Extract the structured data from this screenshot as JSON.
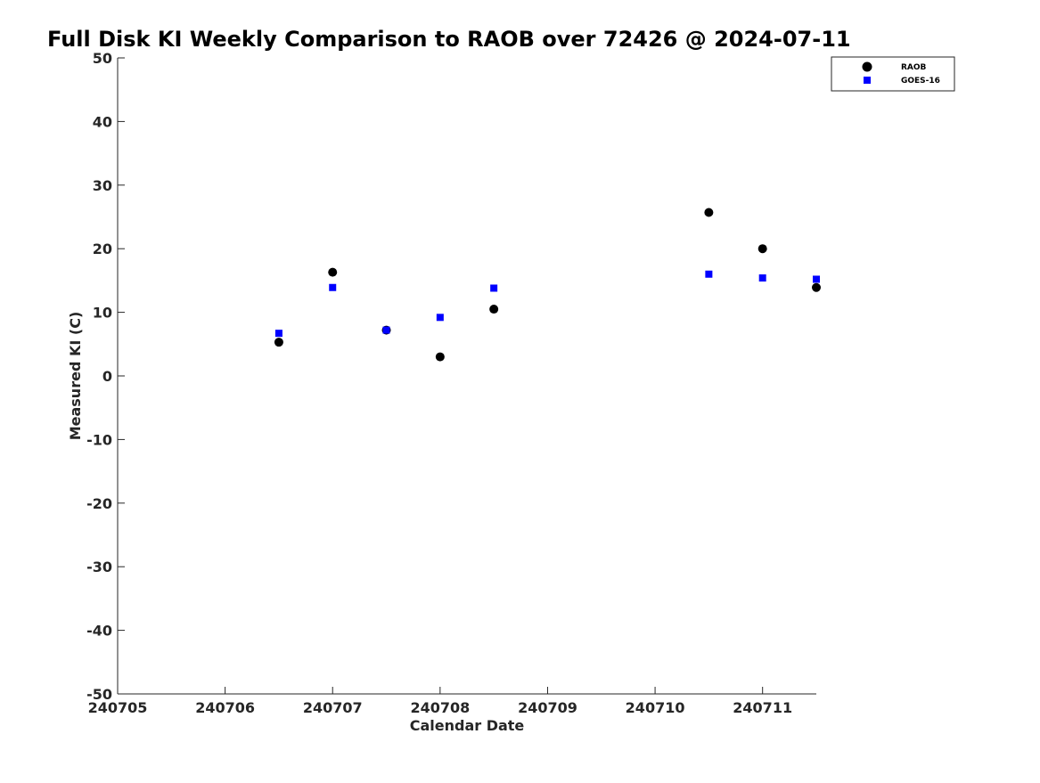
{
  "chart_data": {
    "type": "scatter",
    "title": "Full Disk KI Weekly Comparison to RAOB over 72426 @ 2024-07-11",
    "xlabel": "Calendar Date",
    "ylabel": "Measured KI (C)",
    "xlim": [
      240705,
      240711.5
    ],
    "ylim": [
      -50,
      50
    ],
    "xticks": [
      240705,
      240706,
      240707,
      240708,
      240709,
      240710,
      240711
    ],
    "xtick_labels": [
      "240705",
      "240706",
      "240707",
      "240708",
      "240709",
      "240710",
      "240711"
    ],
    "yticks": [
      -50,
      -40,
      -30,
      -20,
      -10,
      0,
      10,
      20,
      30,
      40,
      50
    ],
    "ytick_labels": [
      "-50",
      "-40",
      "-30",
      "-20",
      "-10",
      "0",
      "10",
      "20",
      "30",
      "40",
      "50"
    ],
    "grid": false,
    "legend_position": "top-right",
    "series": [
      {
        "name": "RAOB",
        "marker": "circle",
        "color": "#000000",
        "x": [
          240706.5,
          240707,
          240707.5,
          240708,
          240708.5,
          240710.5,
          240711,
          240711.5
        ],
        "y": [
          5.3,
          16.3,
          7.2,
          3.0,
          10.5,
          25.7,
          20.0,
          13.9
        ]
      },
      {
        "name": "GOES-16",
        "marker": "square",
        "color": "#0000ff",
        "x": [
          240706.5,
          240707,
          240707.5,
          240708,
          240708.5,
          240710.5,
          240711,
          240711.5
        ],
        "y": [
          6.7,
          13.9,
          7.2,
          9.2,
          13.8,
          16.0,
          15.4,
          15.2
        ]
      }
    ]
  }
}
